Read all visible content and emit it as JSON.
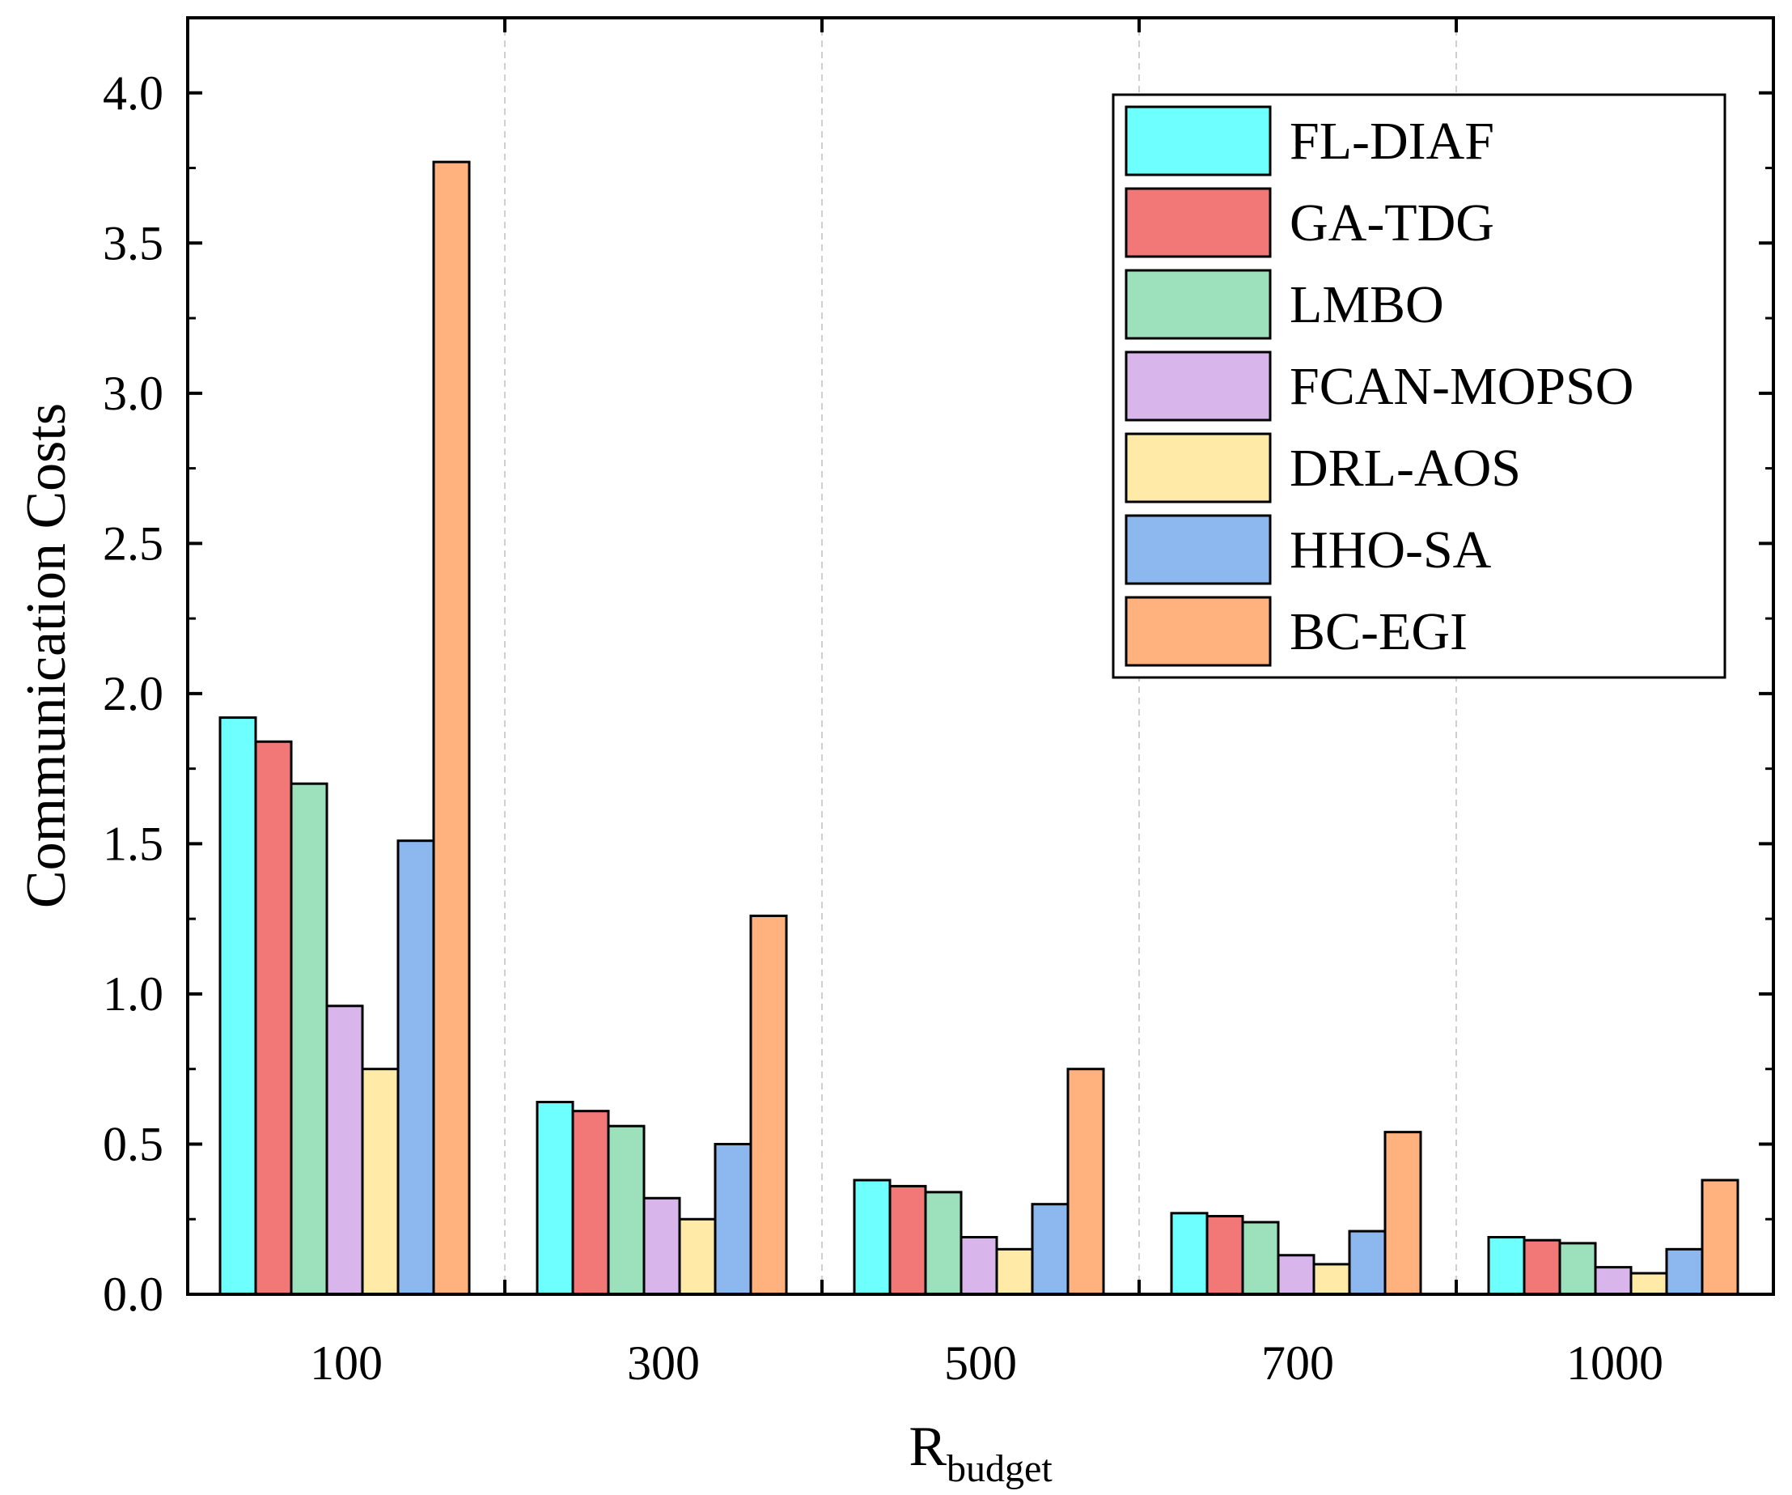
{
  "chart_data": {
    "type": "bar",
    "title": "",
    "xlabel": "R",
    "xlabel_subscript": "budget",
    "ylabel": "Communication Costs",
    "ylim": [
      0,
      4.25
    ],
    "yticks": [
      "0.0",
      "0.5",
      "1.0",
      "1.5",
      "2.0",
      "2.5",
      "3.0",
      "3.5",
      "4.0"
    ],
    "categories": [
      "100",
      "300",
      "500",
      "700",
      "1000"
    ],
    "legend_position": "top-right",
    "grid": "vertical dashed separators between groups",
    "series": [
      {
        "name": "FL-DIAF",
        "color": "#6effff",
        "values": [
          1.92,
          0.64,
          0.38,
          0.27,
          0.19
        ]
      },
      {
        "name": "GA-TDG",
        "color": "#f27777",
        "values": [
          1.84,
          0.61,
          0.36,
          0.26,
          0.18
        ]
      },
      {
        "name": "LMBO",
        "color": "#9ce0bc",
        "values": [
          1.7,
          0.56,
          0.34,
          0.24,
          0.17
        ]
      },
      {
        "name": "FCAN-MOPSO",
        "color": "#d8b6ec",
        "values": [
          0.96,
          0.32,
          0.19,
          0.13,
          0.09
        ]
      },
      {
        "name": "DRL-AOS",
        "color": "#ffeaa8",
        "values": [
          0.75,
          0.25,
          0.15,
          0.1,
          0.07
        ]
      },
      {
        "name": "HHO-SA",
        "color": "#8cb8ef",
        "values": [
          1.51,
          0.5,
          0.3,
          0.21,
          0.15
        ]
      },
      {
        "name": "BC-EGI",
        "color": "#ffb27e",
        "values": [
          3.77,
          1.26,
          0.75,
          0.54,
          0.38
        ]
      }
    ]
  }
}
